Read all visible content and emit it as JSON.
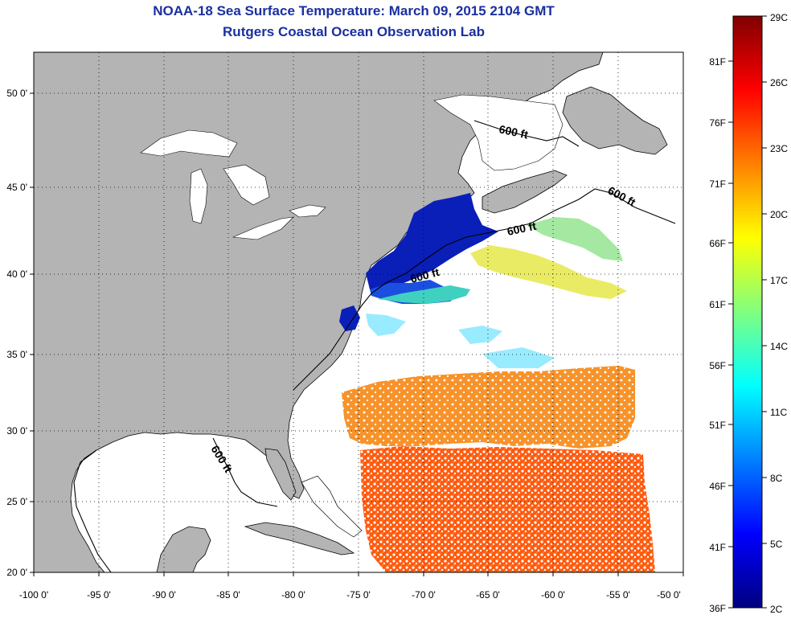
{
  "title": "NOAA-18 Sea Surface Temperature:  March 09, 2015 2104 GMT",
  "subtitle": "Rutgers Coastal Ocean Observation Lab",
  "map": {
    "lon_range": [
      -100,
      -50
    ],
    "lat_range": [
      20,
      52.5
    ],
    "lon_ticks": [
      "-100 0'",
      "-95 0'",
      "-90 0'",
      "-85 0'",
      "-80 0'",
      "-75 0'",
      "-70 0'",
      "-65 0'",
      "-60 0'",
      "-55 0'",
      "-50 0'"
    ],
    "lat_ticks": [
      "20 0'",
      "25 0'",
      "30 0'",
      "35 0'",
      "40 0'",
      "45 0'",
      "50 0'"
    ],
    "land_color": "#b4b4b4",
    "contour_label": "600 ft"
  },
  "colorbar": {
    "celsius": [
      "29C",
      "26C",
      "23C",
      "20C",
      "17C",
      "14C",
      "11C",
      "8C",
      "5C",
      "2C"
    ],
    "fahrenheit": [
      "81F",
      "76F",
      "71F",
      "66F",
      "61F",
      "56F",
      "51F",
      "46F",
      "41F",
      "36F"
    ],
    "colors": [
      "#000080",
      "#0000ff",
      "#0080ff",
      "#00ffff",
      "#80ff80",
      "#ffff00",
      "#ff8000",
      "#ff0000",
      "#800000"
    ]
  }
}
